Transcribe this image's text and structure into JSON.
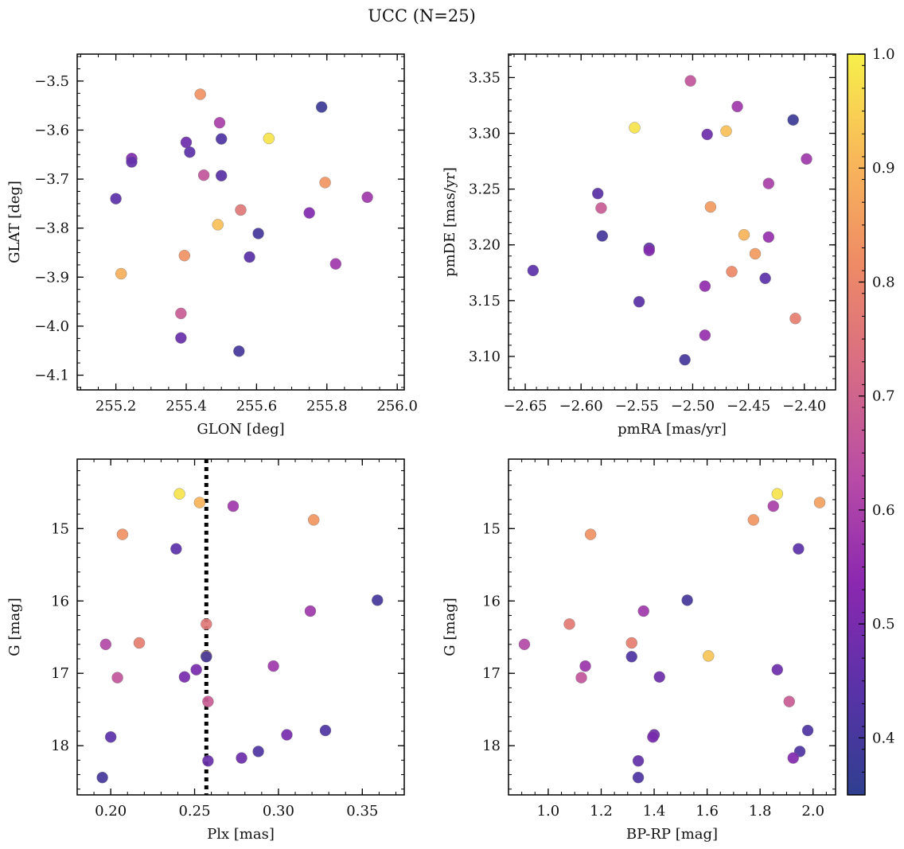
{
  "title": "UCC (N=25)",
  "colormap": {
    "name": "plasma",
    "stops": [
      "#2f3f8f",
      "#5a32a8",
      "#8b28b0",
      "#b84ca6",
      "#d66b85",
      "#ee8a66",
      "#f8b75a",
      "#f7f04a"
    ],
    "range": [
      0.35,
      1.0
    ],
    "ticks": [
      0.4,
      0.5,
      0.6,
      0.7,
      0.8,
      0.9,
      1.0
    ],
    "tick_labels": [
      "0.4",
      "0.5",
      "0.6",
      "0.7",
      "0.8",
      "0.9",
      "1.0"
    ]
  },
  "chart_data": [
    {
      "type": "scatter",
      "xlabel": "GLON [deg]",
      "ylabel": "GLAT [deg]",
      "xlim": [
        255.09,
        256.02
      ],
      "ylim": [
        -4.13,
        -3.445
      ],
      "y_inverted": false,
      "xticks": [
        255.2,
        255.4,
        255.6,
        255.8,
        256.0
      ],
      "xtick_labels": [
        "255.2",
        "255.4",
        "255.6",
        "255.8",
        "256.0"
      ],
      "yticks": [
        -3.5,
        -3.6,
        -3.7,
        -3.8,
        -3.9,
        -4.0,
        -4.1
      ],
      "ytick_labels": [
        "−3.5",
        "−3.6",
        "−3.7",
        "−3.8",
        "−3.9",
        "−4.0",
        "−4.1"
      ],
      "minor_x": 0.05,
      "minor_y": 0.025,
      "points": [
        {
          "x": 255.44,
          "y": -3.527,
          "c": 0.83
        },
        {
          "x": 255.785,
          "y": -3.553,
          "c": 0.38
        },
        {
          "x": 255.495,
          "y": -3.585,
          "c": 0.6
        },
        {
          "x": 255.635,
          "y": -3.617,
          "c": 0.98
        },
        {
          "x": 255.5,
          "y": -3.618,
          "c": 0.42
        },
        {
          "x": 255.4,
          "y": -3.625,
          "c": 0.48
        },
        {
          "x": 255.41,
          "y": -3.645,
          "c": 0.45
        },
        {
          "x": 255.245,
          "y": -3.658,
          "c": 0.52
        },
        {
          "x": 255.245,
          "y": -3.665,
          "c": 0.46
        },
        {
          "x": 255.45,
          "y": -3.692,
          "c": 0.66
        },
        {
          "x": 255.5,
          "y": -3.693,
          "c": 0.44
        },
        {
          "x": 255.795,
          "y": -3.707,
          "c": 0.84
        },
        {
          "x": 255.2,
          "y": -3.74,
          "c": 0.45
        },
        {
          "x": 255.915,
          "y": -3.737,
          "c": 0.58
        },
        {
          "x": 255.555,
          "y": -3.763,
          "c": 0.76
        },
        {
          "x": 255.75,
          "y": -3.769,
          "c": 0.52
        },
        {
          "x": 255.49,
          "y": -3.793,
          "c": 0.92
        },
        {
          "x": 255.605,
          "y": -3.811,
          "c": 0.4
        },
        {
          "x": 255.395,
          "y": -3.856,
          "c": 0.83
        },
        {
          "x": 255.58,
          "y": -3.859,
          "c": 0.44
        },
        {
          "x": 255.825,
          "y": -3.873,
          "c": 0.58
        },
        {
          "x": 255.215,
          "y": -3.893,
          "c": 0.89
        },
        {
          "x": 255.385,
          "y": -3.974,
          "c": 0.68
        },
        {
          "x": 255.385,
          "y": -4.024,
          "c": 0.47
        },
        {
          "x": 255.55,
          "y": -4.051,
          "c": 0.4
        }
      ]
    },
    {
      "type": "scatter",
      "xlabel": "pmRA [mas/yr]",
      "ylabel": "pmDE [mas/yr]",
      "xlim": [
        -2.665,
        -2.372
      ],
      "ylim": [
        3.07,
        3.371
      ],
      "y_inverted": false,
      "xticks": [
        -2.65,
        -2.6,
        -2.55,
        -2.5,
        -2.45,
        -2.4
      ],
      "xtick_labels": [
        "−2.65",
        "−2.60",
        "−2.55",
        "−2.50",
        "−2.45",
        "−2.40"
      ],
      "yticks": [
        3.1,
        3.15,
        3.2,
        3.25,
        3.3,
        3.35
      ],
      "ytick_labels": [
        "3.10",
        "3.15",
        "3.20",
        "3.25",
        "3.30",
        "3.35"
      ],
      "minor_x": 0.01,
      "minor_y": 0.01,
      "points": [
        {
          "x": -2.502,
          "y": 3.347,
          "c": 0.66
        },
        {
          "x": -2.46,
          "y": 3.324,
          "c": 0.58
        },
        {
          "x": -2.41,
          "y": 3.312,
          "c": 0.38
        },
        {
          "x": -2.552,
          "y": 3.305,
          "c": 0.98
        },
        {
          "x": -2.47,
          "y": 3.302,
          "c": 0.92
        },
        {
          "x": -2.487,
          "y": 3.299,
          "c": 0.48
        },
        {
          "x": -2.398,
          "y": 3.277,
          "c": 0.58
        },
        {
          "x": -2.432,
          "y": 3.255,
          "c": 0.6
        },
        {
          "x": -2.585,
          "y": 3.246,
          "c": 0.44
        },
        {
          "x": -2.484,
          "y": 3.234,
          "c": 0.85
        },
        {
          "x": -2.582,
          "y": 3.233,
          "c": 0.68
        },
        {
          "x": -2.454,
          "y": 3.209,
          "c": 0.9
        },
        {
          "x": -2.581,
          "y": 3.208,
          "c": 0.4
        },
        {
          "x": -2.432,
          "y": 3.207,
          "c": 0.56
        },
        {
          "x": -2.539,
          "y": 3.197,
          "c": 0.44
        },
        {
          "x": -2.539,
          "y": 3.195,
          "c": 0.52
        },
        {
          "x": -2.444,
          "y": 3.192,
          "c": 0.85
        },
        {
          "x": -2.643,
          "y": 3.177,
          "c": 0.45
        },
        {
          "x": -2.465,
          "y": 3.176,
          "c": 0.81
        },
        {
          "x": -2.435,
          "y": 3.17,
          "c": 0.45
        },
        {
          "x": -2.489,
          "y": 3.163,
          "c": 0.55
        },
        {
          "x": -2.548,
          "y": 3.149,
          "c": 0.44
        },
        {
          "x": -2.408,
          "y": 3.134,
          "c": 0.78
        },
        {
          "x": -2.489,
          "y": 3.119,
          "c": 0.56
        },
        {
          "x": -2.507,
          "y": 3.097,
          "c": 0.4
        }
      ]
    },
    {
      "type": "scatter",
      "xlabel": "Plx [mas]",
      "ylabel": "G [mag]",
      "xlim": [
        0.18,
        0.375
      ],
      "ylim": [
        18.68,
        14.04
      ],
      "y_inverted": true,
      "xticks": [
        0.2,
        0.25,
        0.3,
        0.35
      ],
      "xtick_labels": [
        "0.20",
        "0.25",
        "0.30",
        "0.35"
      ],
      "yticks": [
        15,
        16,
        17,
        18
      ],
      "ytick_labels": [
        "15",
        "16",
        "17",
        "18"
      ],
      "minor_x": 0.01,
      "minor_y": 0.2,
      "vline": 0.257,
      "points": [
        {
          "x": 0.241,
          "y": 14.52,
          "c": 0.98
        },
        {
          "x": 0.253,
          "y": 14.64,
          "c": 0.9
        },
        {
          "x": 0.273,
          "y": 14.69,
          "c": 0.58
        },
        {
          "x": 0.321,
          "y": 14.88,
          "c": 0.84
        },
        {
          "x": 0.207,
          "y": 15.08,
          "c": 0.83
        },
        {
          "x": 0.239,
          "y": 15.28,
          "c": 0.45
        },
        {
          "x": 0.359,
          "y": 15.99,
          "c": 0.4
        },
        {
          "x": 0.319,
          "y": 16.14,
          "c": 0.58
        },
        {
          "x": 0.257,
          "y": 16.32,
          "c": 0.76
        },
        {
          "x": 0.197,
          "y": 16.6,
          "c": 0.62
        },
        {
          "x": 0.217,
          "y": 16.58,
          "c": 0.78
        },
        {
          "x": 0.257,
          "y": 16.76,
          "c": 0.91
        },
        {
          "x": 0.257,
          "y": 16.77,
          "c": 0.4
        },
        {
          "x": 0.297,
          "y": 16.9,
          "c": 0.58
        },
        {
          "x": 0.251,
          "y": 16.95,
          "c": 0.5
        },
        {
          "x": 0.204,
          "y": 17.06,
          "c": 0.66
        },
        {
          "x": 0.244,
          "y": 17.05,
          "c": 0.5
        },
        {
          "x": 0.258,
          "y": 17.39,
          "c": 0.68
        },
        {
          "x": 0.328,
          "y": 17.79,
          "c": 0.42
        },
        {
          "x": 0.305,
          "y": 17.85,
          "c": 0.5
        },
        {
          "x": 0.2,
          "y": 17.88,
          "c": 0.45
        },
        {
          "x": 0.288,
          "y": 18.08,
          "c": 0.42
        },
        {
          "x": 0.278,
          "y": 18.17,
          "c": 0.48
        },
        {
          "x": 0.258,
          "y": 18.21,
          "c": 0.47
        },
        {
          "x": 0.195,
          "y": 18.44,
          "c": 0.4
        }
      ]
    },
    {
      "type": "scatter",
      "xlabel": "BP-RP [mag]",
      "ylabel": "G [mag]",
      "xlim": [
        0.85,
        2.085
      ],
      "ylim": [
        18.68,
        14.04
      ],
      "y_inverted": true,
      "xticks": [
        1.0,
        1.2,
        1.4,
        1.6,
        1.8,
        2.0
      ],
      "xtick_labels": [
        "1.0",
        "1.2",
        "1.4",
        "1.6",
        "1.8",
        "2.0"
      ],
      "yticks": [
        15,
        16,
        17,
        18
      ],
      "ytick_labels": [
        "15",
        "16",
        "17",
        "18"
      ],
      "minor_x": 0.05,
      "minor_y": 0.2,
      "points": [
        {
          "x": 1.865,
          "y": 14.52,
          "c": 0.98
        },
        {
          "x": 2.025,
          "y": 14.64,
          "c": 0.86
        },
        {
          "x": 1.85,
          "y": 14.69,
          "c": 0.6
        },
        {
          "x": 1.775,
          "y": 14.88,
          "c": 0.84
        },
        {
          "x": 1.16,
          "y": 15.08,
          "c": 0.83
        },
        {
          "x": 1.945,
          "y": 15.28,
          "c": 0.45
        },
        {
          "x": 1.525,
          "y": 15.99,
          "c": 0.4
        },
        {
          "x": 1.36,
          "y": 16.14,
          "c": 0.58
        },
        {
          "x": 1.08,
          "y": 16.32,
          "c": 0.77
        },
        {
          "x": 0.91,
          "y": 16.6,
          "c": 0.62
        },
        {
          "x": 1.315,
          "y": 16.58,
          "c": 0.78
        },
        {
          "x": 1.605,
          "y": 16.76,
          "c": 0.93
        },
        {
          "x": 1.315,
          "y": 16.77,
          "c": 0.42
        },
        {
          "x": 1.14,
          "y": 16.9,
          "c": 0.57
        },
        {
          "x": 1.865,
          "y": 16.95,
          "c": 0.48
        },
        {
          "x": 1.125,
          "y": 17.06,
          "c": 0.66
        },
        {
          "x": 1.42,
          "y": 17.05,
          "c": 0.48
        },
        {
          "x": 1.91,
          "y": 17.39,
          "c": 0.68
        },
        {
          "x": 1.98,
          "y": 17.79,
          "c": 0.42
        },
        {
          "x": 1.4,
          "y": 17.85,
          "c": 0.48
        },
        {
          "x": 1.395,
          "y": 17.88,
          "c": 0.5
        },
        {
          "x": 1.95,
          "y": 18.08,
          "c": 0.42
        },
        {
          "x": 1.925,
          "y": 18.17,
          "c": 0.52
        },
        {
          "x": 1.34,
          "y": 18.21,
          "c": 0.46
        },
        {
          "x": 1.34,
          "y": 18.44,
          "c": 0.42
        }
      ]
    }
  ]
}
